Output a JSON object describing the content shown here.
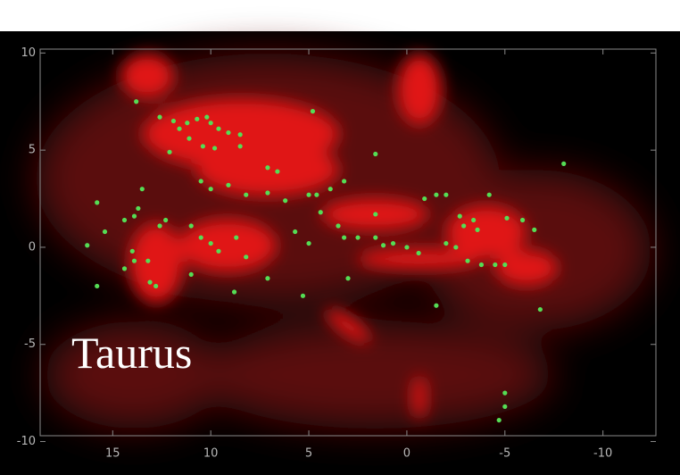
{
  "chart_data": {
    "type": "scatter",
    "annotation": "Taurus",
    "xlim": [
      18.7,
      -12.7
    ],
    "ylim": [
      -9.7,
      10.2
    ],
    "xticks": [
      15,
      10,
      5,
      0,
      -5,
      -10
    ],
    "yticks": [
      -10,
      -5,
      0,
      5,
      10
    ],
    "color": "#55dd55",
    "x": [
      13.8,
      12.6,
      11.9,
      11.6,
      11.2,
      10.7,
      10.2,
      10.0,
      9.6,
      9.1,
      8.5,
      12.1,
      11.1,
      10.4,
      9.8,
      8.5,
      4.8,
      7.1,
      6.6,
      9.1,
      10.5,
      10.0,
      8.2,
      7.1,
      6.2,
      5.0,
      4.6,
      3.9,
      3.2,
      1.6,
      13.5,
      13.7,
      13.9,
      14.4,
      15.8,
      16.3,
      15.4,
      14.0,
      13.9,
      14.4,
      13.2,
      13.1,
      12.8,
      12.3,
      11.0,
      10.5,
      10.0,
      9.6,
      8.7,
      8.2,
      11.0,
      8.8,
      7.1,
      5.7,
      5.0,
      4.4,
      3.5,
      3.2,
      2.5,
      1.6,
      1.2,
      0.7,
      0.0,
      -0.6,
      -0.9,
      -1.5,
      -2.0,
      -2.7,
      -2.9,
      -3.4,
      -3.6,
      -2.0,
      -2.5,
      -3.1,
      -3.8,
      -4.5,
      -5.0,
      -4.2,
      -5.1,
      -5.9,
      -6.5,
      -6.8,
      -8.0,
      -1.5,
      5.3,
      -5.0,
      -5.0,
      -4.7,
      15.8,
      3.0,
      1.6,
      12.6
    ],
    "y": [
      7.5,
      6.7,
      6.5,
      6.1,
      6.4,
      6.6,
      6.7,
      6.4,
      6.1,
      5.9,
      5.8,
      4.9,
      5.6,
      5.2,
      5.1,
      5.2,
      7.0,
      4.1,
      3.9,
      3.2,
      3.4,
      3.0,
      2.7,
      2.8,
      2.4,
      2.7,
      2.7,
      3.0,
      3.4,
      4.8,
      3.0,
      2.0,
      1.6,
      1.4,
      2.3,
      0.1,
      0.8,
      -0.2,
      -0.7,
      -1.1,
      -0.7,
      -1.8,
      -2.0,
      1.4,
      1.1,
      0.5,
      0.2,
      -0.2,
      0.5,
      -0.5,
      -1.4,
      -2.3,
      -1.6,
      0.8,
      0.2,
      1.8,
      1.1,
      0.5,
      0.5,
      0.5,
      0.1,
      0.2,
      0.0,
      -0.3,
      2.5,
      2.7,
      2.7,
      1.6,
      1.1,
      1.4,
      0.9,
      0.2,
      0.0,
      -0.7,
      -0.9,
      -0.9,
      -0.9,
      2.7,
      1.5,
      1.4,
      0.9,
      -3.2,
      4.3,
      -3.0,
      -2.5,
      -7.5,
      -8.2,
      -8.9,
      -2.0,
      -1.6,
      1.7,
      1.1
    ]
  }
}
